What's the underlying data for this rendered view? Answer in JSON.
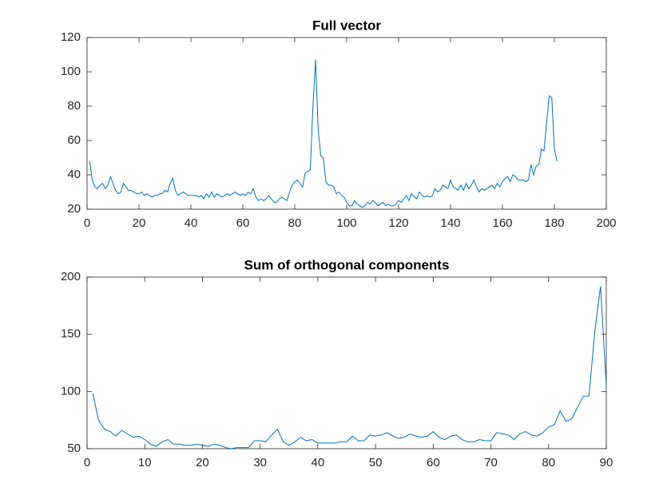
{
  "chart_data": [
    {
      "type": "line",
      "title": "Full vector",
      "x": [
        1,
        2,
        3,
        4,
        5,
        6,
        7,
        8,
        9,
        10,
        11,
        12,
        13,
        14,
        15,
        16,
        17,
        18,
        19,
        20,
        21,
        22,
        23,
        24,
        25,
        26,
        27,
        28,
        29,
        30,
        31,
        32,
        33,
        34,
        35,
        36,
        37,
        38,
        39,
        40,
        41,
        42,
        43,
        44,
        45,
        46,
        47,
        48,
        49,
        50,
        51,
        52,
        53,
        54,
        55,
        56,
        57,
        58,
        59,
        60,
        61,
        62,
        63,
        64,
        65,
        66,
        67,
        68,
        69,
        70,
        71,
        72,
        73,
        74,
        75,
        76,
        77,
        78,
        79,
        80,
        81,
        82,
        83,
        84,
        85,
        86,
        87,
        88,
        89,
        90,
        91,
        92,
        93,
        94,
        95,
        96,
        97,
        98,
        99,
        100,
        101,
        102,
        103,
        104,
        105,
        106,
        107,
        108,
        109,
        110,
        111,
        112,
        113,
        114,
        115,
        116,
        117,
        118,
        119,
        120,
        121,
        122,
        123,
        124,
        125,
        126,
        127,
        128,
        129,
        130,
        131,
        132,
        133,
        134,
        135,
        136,
        137,
        138,
        139,
        140,
        141,
        142,
        143,
        144,
        145,
        146,
        147,
        148,
        149,
        150,
        151,
        152,
        153,
        154,
        155,
        156,
        157,
        158,
        159,
        160,
        161,
        162,
        163,
        164,
        165,
        166,
        167,
        168,
        169,
        170,
        171,
        172,
        173,
        174,
        175,
        176,
        177,
        178,
        179,
        180,
        181
      ],
      "series": [
        {
          "color": "#0072bd",
          "values": [
            48,
            37,
            33,
            32,
            34,
            35,
            32,
            34,
            39,
            35,
            31,
            29,
            30,
            35,
            33,
            31,
            31,
            30,
            29,
            29,
            30,
            28,
            29,
            28,
            27,
            28,
            28,
            29,
            29,
            31,
            30,
            35,
            38,
            31,
            28,
            29,
            30,
            29,
            28,
            28,
            28,
            28,
            27,
            28,
            26,
            29,
            27,
            30,
            27,
            29,
            28,
            27,
            28,
            29,
            28,
            29,
            30,
            29,
            28,
            29,
            28,
            30,
            29,
            32,
            27,
            25,
            26,
            25,
            26,
            28,
            26,
            24,
            24,
            26,
            27,
            26,
            25,
            30,
            34,
            36,
            37,
            35,
            33,
            41,
            42,
            43,
            80,
            107,
            67,
            51,
            50,
            36,
            34,
            34,
            33,
            29,
            30,
            28,
            27,
            24,
            22,
            22,
            25,
            23,
            22,
            21,
            22,
            24,
            23,
            25,
            24,
            22,
            23,
            24,
            22,
            23,
            22,
            22,
            23,
            25,
            24,
            26,
            28,
            25,
            29,
            27,
            26,
            30,
            28,
            27,
            28,
            27,
            28,
            32,
            30,
            31,
            34,
            33,
            32,
            37,
            33,
            32,
            31,
            34,
            31,
            35,
            32,
            34,
            37,
            33,
            30,
            32,
            31,
            32,
            33,
            34,
            32,
            35,
            33,
            36,
            38,
            39,
            36,
            40,
            39,
            37,
            37,
            37,
            36,
            37,
            46,
            40,
            45,
            46,
            55,
            54,
            70,
            86,
            85,
            55,
            48
          ]
        }
      ],
      "xlim": [
        0,
        200
      ],
      "xticks": [
        0,
        20,
        40,
        60,
        80,
        100,
        120,
        140,
        160,
        180,
        200
      ],
      "ylim": [
        20,
        120
      ],
      "yticks": [
        20,
        40,
        60,
        80,
        100,
        120
      ]
    },
    {
      "type": "line",
      "title": "Sum of orthogonal components",
      "x": [
        1,
        2,
        3,
        4,
        5,
        6,
        7,
        8,
        9,
        10,
        11,
        12,
        13,
        14,
        15,
        16,
        17,
        18,
        19,
        20,
        21,
        22,
        23,
        24,
        25,
        26,
        27,
        28,
        29,
        30,
        31,
        32,
        33,
        34,
        35,
        36,
        37,
        38,
        39,
        40,
        41,
        42,
        43,
        44,
        45,
        46,
        47,
        48,
        49,
        50,
        51,
        52,
        53,
        54,
        55,
        56,
        57,
        58,
        59,
        60,
        61,
        62,
        63,
        64,
        65,
        66,
        67,
        68,
        69,
        70,
        71,
        72,
        73,
        74,
        75,
        76,
        77,
        78,
        79,
        80,
        81,
        82,
        83,
        84,
        85,
        86,
        87,
        88,
        89,
        90
      ],
      "series": [
        {
          "color": "#0072bd",
          "values": [
            98,
            75,
            67,
            65,
            61,
            66,
            63,
            60,
            61,
            58,
            54,
            52,
            56,
            58,
            54,
            54,
            53,
            53,
            54,
            53,
            52,
            54,
            53,
            51,
            50,
            51,
            51,
            51,
            57,
            57,
            56,
            62,
            67,
            56,
            53,
            56,
            60,
            57,
            58,
            55,
            55,
            55,
            55,
            56,
            56,
            61,
            57,
            57,
            62,
            61,
            62,
            64,
            61,
            59,
            60,
            63,
            61,
            60,
            61,
            65,
            60,
            58,
            61,
            62,
            58,
            56,
            56,
            58,
            57,
            57,
            64,
            63,
            62,
            58,
            63,
            65,
            62,
            61,
            64,
            69,
            71,
            83,
            74,
            76,
            86,
            96,
            96,
            152,
            192,
            105
          ]
        }
      ],
      "xlim": [
        0,
        90
      ],
      "xticks": [
        0,
        10,
        20,
        30,
        40,
        50,
        60,
        70,
        80,
        90
      ],
      "ylim": [
        50,
        200
      ],
      "yticks": [
        50,
        100,
        150,
        200
      ]
    }
  ]
}
